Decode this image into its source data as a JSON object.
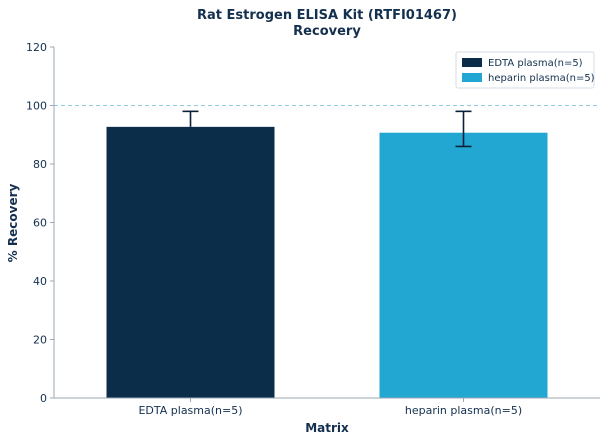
{
  "chart_data": {
    "type": "bar",
    "title": "Rat Estrogen ELISA Kit (RTFI01467)",
    "subtitle": "Recovery",
    "xlabel": "Matrix",
    "ylabel": "% Recovery",
    "categories": [
      "EDTA plasma(n=5)",
      "heparin plasma(n=5)"
    ],
    "values": [
      92.7,
      90.7
    ],
    "error_low": [
      92.7,
      86.0
    ],
    "error_high": [
      98.0,
      98.0
    ],
    "colors": [
      "#0b2d4a",
      "#22a7d3"
    ],
    "ylim": [
      0,
      120
    ],
    "yticks": [
      0,
      20,
      40,
      60,
      80,
      100,
      120
    ],
    "reference_line": 100,
    "reference_color": "#8fc9de",
    "grid": false,
    "legend": {
      "position": "top-right",
      "entries": [
        "EDTA plasma(n=5)",
        "heparin plasma(n=5)"
      ]
    }
  }
}
